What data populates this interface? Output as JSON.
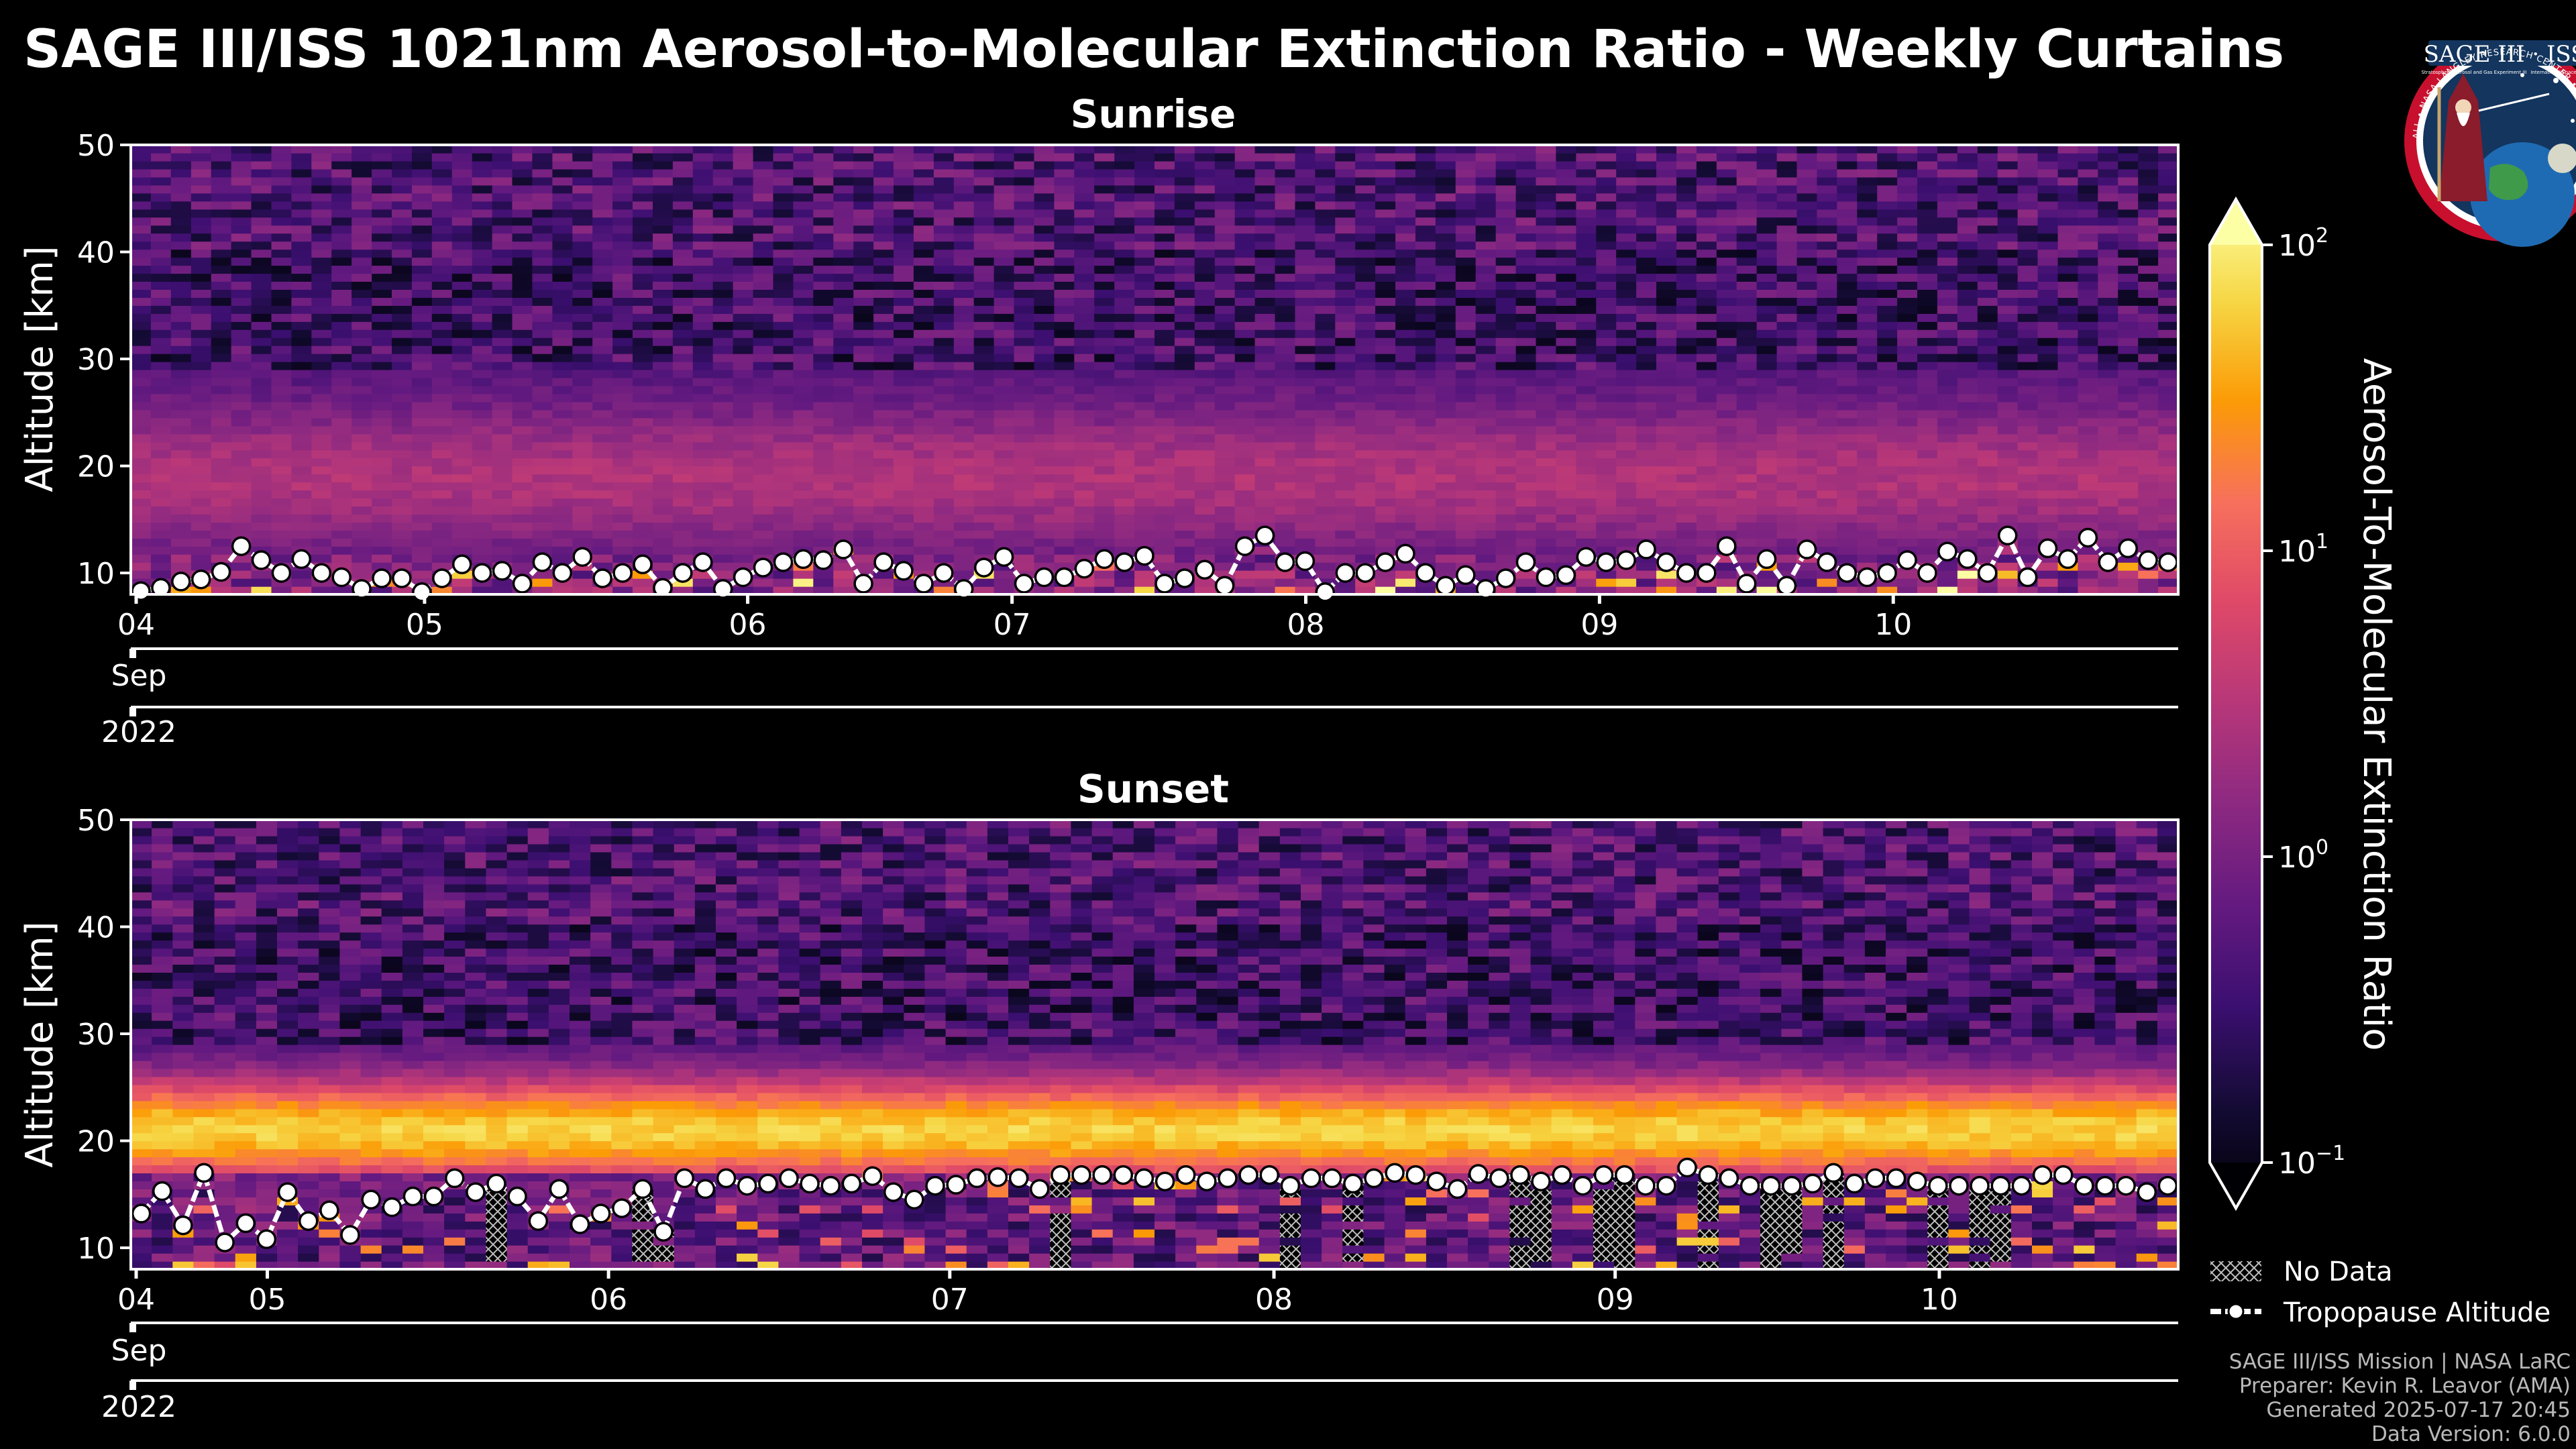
{
  "colors": {
    "background": "#000000",
    "text": "#ffffff",
    "credit": "#b9b9b9",
    "logo_bg": "#13355e",
    "logo_ring": "#c8102e"
  },
  "figure": {
    "title": "SAGE III/ISS 1021nm Aerosol-to-Molecular Extinction Ratio - Weekly Curtains",
    "credits": [
      "SAGE III/ISS Mission | NASA LaRC",
      "Preparer: Kevin R. Leavor (AMA)",
      "Generated 2025-07-17 20:45",
      "Data Version: 6.0.0"
    ]
  },
  "logo": {
    "text": "SAGE III · ISS",
    "ring_text": "BALL • NASA LANGLEY RESEARCH CENTER • TAS-I • ESA",
    "sub_text_left": "Stratospheric Aerosol and Gas Experiment III",
    "sub_text_right": "International Space Station"
  },
  "chart_data": [
    {
      "type": "heatmap",
      "title": "Sunrise",
      "ylabel": "Altitude [km]",
      "ylim": [
        8,
        50
      ],
      "yticks": [
        10,
        20,
        30,
        40,
        50
      ],
      "x_tick_labels": [
        "04",
        "05",
        "06",
        "07",
        "08",
        "09",
        "10"
      ],
      "x_tick_months": [
        4.0,
        5.0,
        6.1,
        7.0,
        8.0,
        9.0,
        10.0
      ],
      "x_range": [
        4.0,
        10.97
      ],
      "month_label": "Sep",
      "year_label": "2022",
      "aerosol_layer": {
        "base_km": 12,
        "top_km": 28,
        "peak_km": 19,
        "peak_ratio": 3.5
      },
      "tropopause_km": [
        8.3,
        8.6,
        9.2,
        9.4,
        10.1,
        12.5,
        11.2,
        10.0,
        11.3,
        10.0,
        9.6,
        8.5,
        9.5,
        9.5,
        8.2,
        9.5,
        10.8,
        10.0,
        10.2,
        9.0,
        11.0,
        10.0,
        11.5,
        9.5,
        10.0,
        10.8,
        8.6,
        10.0,
        11.0,
        8.5,
        9.6,
        10.5,
        11.0,
        11.3,
        11.2,
        12.2,
        9.0,
        11.0,
        10.2,
        9.0,
        10.0,
        8.5,
        10.5,
        11.5,
        9.0,
        9.6,
        9.6,
        10.4,
        11.3,
        11.0,
        11.6,
        9.0,
        9.5,
        10.3,
        8.8,
        12.5,
        13.5,
        11.0,
        11.1,
        8.2,
        10.0,
        10.0,
        11.0,
        11.8,
        10.0,
        8.8,
        9.8,
        8.5,
        9.5,
        11.0,
        9.6,
        9.8,
        11.5,
        11.0,
        11.2,
        12.2,
        11.0,
        10.0,
        10.0,
        12.5,
        9.0,
        11.3,
        8.8,
        12.2,
        11.0,
        10.0,
        9.6,
        10.0,
        11.2,
        10.0,
        12.0,
        11.3,
        10.0,
        13.5,
        9.6,
        12.3,
        11.3,
        13.3,
        11.0,
        12.3,
        11.2,
        11.0
      ]
    },
    {
      "type": "heatmap",
      "title": "Sunset",
      "ylabel": "Altitude [km]",
      "ylim": [
        8,
        50
      ],
      "yticks": [
        10,
        20,
        30,
        40,
        50
      ],
      "x_tick_labels": [
        "04",
        "05",
        "06",
        "07",
        "08",
        "09",
        "10"
      ],
      "x_tick_months": [
        4.0,
        4.4,
        5.4,
        6.4,
        7.35,
        8.35,
        9.3
      ],
      "x_range": [
        4.0,
        10.0
      ],
      "month_label": "Sep",
      "year_label": "2022",
      "aerosol_layer": {
        "base_km": 17,
        "top_km": 28,
        "peak_km": 21,
        "peak_ratio": 60
      },
      "tropopause_km": [
        13.2,
        15.3,
        12.1,
        17.0,
        10.5,
        12.3,
        10.8,
        15.2,
        12.5,
        13.5,
        11.2,
        14.5,
        13.8,
        14.8,
        14.8,
        16.5,
        15.2,
        16.0,
        14.8,
        12.5,
        15.5,
        12.2,
        13.2,
        13.7,
        15.5,
        11.5,
        16.5,
        15.5,
        16.5,
        15.8,
        16.0,
        16.5,
        16.0,
        15.8,
        16.0,
        16.7,
        15.2,
        14.5,
        15.8,
        15.9,
        16.5,
        16.6,
        16.5,
        15.5,
        16.8,
        16.8,
        16.8,
        16.8,
        16.5,
        16.2,
        16.8,
        16.2,
        16.5,
        16.8,
        16.8,
        15.8,
        16.5,
        16.5,
        16.0,
        16.5,
        17.0,
        16.8,
        16.2,
        15.5,
        16.9,
        16.5,
        16.8,
        16.2,
        16.8,
        15.8,
        16.8,
        16.8,
        15.8,
        15.8,
        17.5,
        16.8,
        16.5,
        15.8,
        15.8,
        15.8,
        16.0,
        17.0,
        16.0,
        16.5,
        16.5,
        16.2,
        15.8,
        15.8,
        15.8,
        15.8,
        15.8,
        16.8,
        16.8,
        15.8,
        15.8,
        15.8,
        15.2,
        15.8
      ],
      "no_data_columns": [
        17,
        24,
        25,
        44,
        55,
        58,
        66,
        67,
        70,
        71,
        75,
        78,
        79,
        81,
        86,
        88,
        89
      ]
    }
  ],
  "colorbar": {
    "label": "Aerosol-To-Molecular Extinction Ratio",
    "ticks": [
      {
        "base": "10",
        "exp": "2",
        "value": 100
      },
      {
        "base": "10",
        "exp": "1",
        "value": 10
      },
      {
        "base": "10",
        "exp": "0",
        "value": 1
      },
      {
        "base": "10",
        "exp": "−1",
        "value": 0.1
      }
    ],
    "scale": "log",
    "range": [
      0.1,
      100
    ]
  },
  "legend": {
    "no_data": "No Data",
    "tropopause": "Tropopause Altitude"
  }
}
